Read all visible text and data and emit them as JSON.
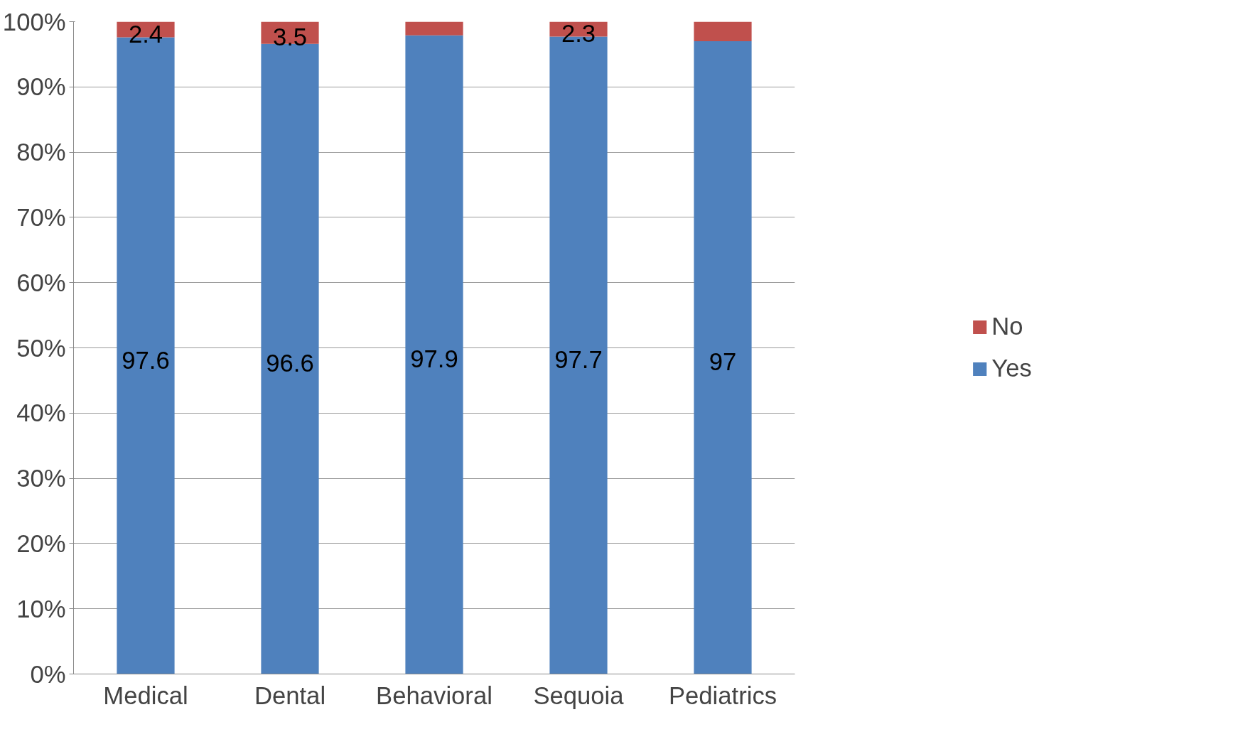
{
  "chart_data": {
    "type": "bar",
    "stacked": true,
    "categories": [
      "Medical",
      "Dental",
      "Behavioral",
      "Sequoia",
      "Pediatrics"
    ],
    "series": [
      {
        "name": "Yes",
        "color": "#4f81bd",
        "values": [
          97.6,
          96.6,
          97.9,
          97.7,
          97
        ],
        "value_labels": [
          "97.6",
          "96.6",
          "97.9",
          "97.7",
          "97"
        ]
      },
      {
        "name": "No",
        "color": "#c0504d",
        "values": [
          2.4,
          3.5,
          2.1,
          2.3,
          3
        ],
        "value_labels": [
          "2.4",
          "3.5",
          null,
          "2.3",
          null
        ]
      }
    ],
    "ylim": [
      0,
      100
    ],
    "yticks": [
      {
        "value": 0,
        "label": "0%"
      },
      {
        "value": 10,
        "label": "10%"
      },
      {
        "value": 20,
        "label": "20%"
      },
      {
        "value": 30,
        "label": "30%"
      },
      {
        "value": 40,
        "label": "40%"
      },
      {
        "value": 50,
        "label": "50%"
      },
      {
        "value": 60,
        "label": "60%"
      },
      {
        "value": 70,
        "label": "70%"
      },
      {
        "value": 80,
        "label": "80%"
      },
      {
        "value": 90,
        "label": "90%"
      },
      {
        "value": 100,
        "label": "100%"
      }
    ],
    "grid": "y",
    "legend": "right"
  }
}
